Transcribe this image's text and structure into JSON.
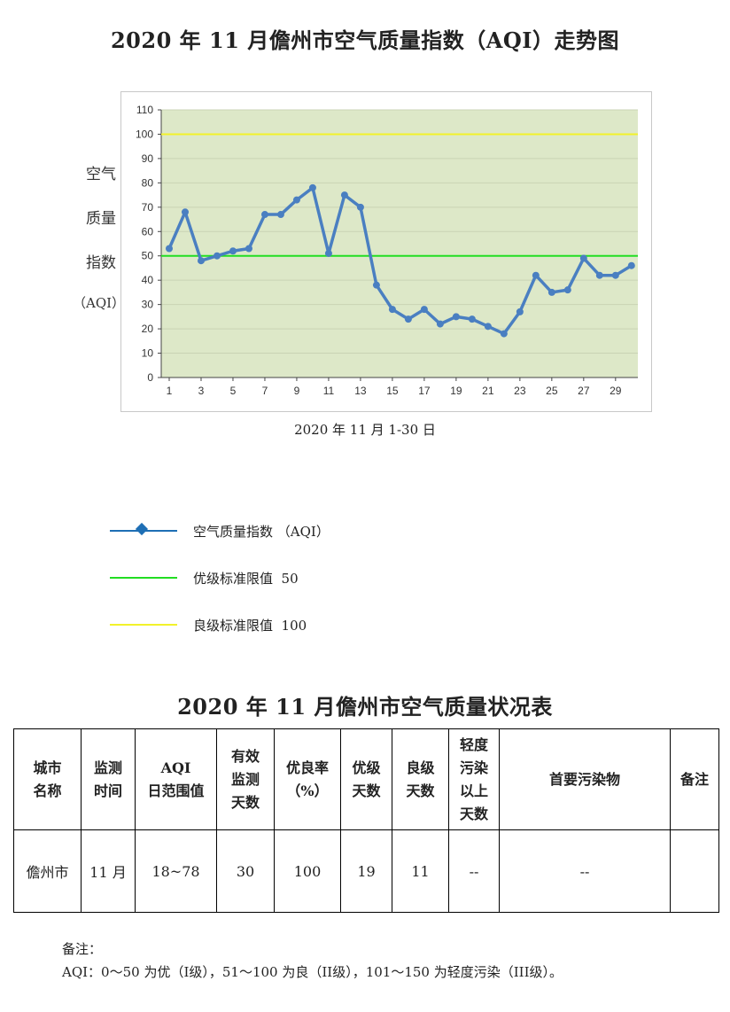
{
  "title": "2020 年 11 月儋州市空气质量指数（AQI）走势图",
  "y_axis_label": [
    "空气",
    "质量",
    "指数",
    "（AQI）"
  ],
  "x_axis_label": "2020 年 11 月 1-30 日",
  "chart_data": {
    "type": "line",
    "title": "2020 年 11 月儋州市空气质量指数（AQI）走势图",
    "xlabel": "2020 年 11 月 1-30 日",
    "ylabel": "空气质量指数（AQI）",
    "ylim": [
      0,
      110
    ],
    "yticks": [
      0,
      10,
      20,
      30,
      40,
      50,
      60,
      70,
      80,
      90,
      100,
      110
    ],
    "xlim": [
      1,
      30
    ],
    "xticks": [
      1,
      3,
      5,
      7,
      9,
      11,
      13,
      15,
      17,
      19,
      21,
      23,
      25,
      27,
      29
    ],
    "grid": true,
    "plot_background": "#dde8c8",
    "x": [
      1,
      2,
      3,
      4,
      5,
      6,
      7,
      8,
      9,
      10,
      11,
      12,
      13,
      14,
      15,
      16,
      17,
      18,
      19,
      20,
      21,
      22,
      23,
      24,
      25,
      26,
      27,
      28,
      29,
      30
    ],
    "series": [
      {
        "name": "空气质量指数 （AQI）",
        "color": "#4a7fc1",
        "values": [
          53,
          68,
          48,
          50,
          52,
          53,
          67,
          67,
          73,
          78,
          51,
          75,
          70,
          38,
          28,
          24,
          28,
          22,
          25,
          24,
          21,
          18,
          27,
          42,
          35,
          36,
          49,
          42,
          42,
          46
        ]
      }
    ],
    "reference_lines": [
      {
        "name": "优级标准限值 50",
        "value": 50,
        "color": "#22dd22"
      },
      {
        "name": "良级标准限值 100",
        "value": 100,
        "color": "#f2f22a"
      }
    ]
  },
  "legend": [
    {
      "label": "空气质量指数 （AQI）",
      "color": "#1e6fb5",
      "marker": "diamond"
    },
    {
      "label": "优级标准限值  50",
      "color": "#22dd22"
    },
    {
      "label": "良级标准限值  100",
      "color": "#f2f22a"
    }
  ],
  "table_title": "2020 年 11 月儋州市空气质量状况表",
  "table": {
    "headers": [
      "城市\n名称",
      "监测\n时间",
      "AQI\n日范围值",
      "有效\n监测\n天数",
      "优良率\n（%）",
      "优级\n天数",
      "良级\n天数",
      "轻度\n污染\n以上\n天数",
      "首要污染物",
      "备注"
    ],
    "row": [
      "儋州市",
      "11 月",
      "18~78",
      "30",
      "100",
      "19",
      "11",
      "--",
      "--",
      ""
    ]
  },
  "notes": {
    "label": "备注：",
    "text": "AQI：0～50 为优（I级），51～100 为良（II级），101～150 为轻度污染（III级）。"
  }
}
